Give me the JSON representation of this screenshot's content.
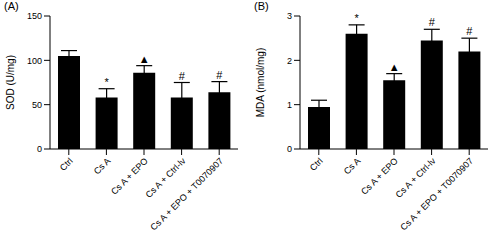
{
  "chart_data": [
    {
      "type": "bar",
      "title": "(A)",
      "y_label": "SOD (U/mg)",
      "categories": [
        "Ctrl",
        "Cs A",
        "Cs A + EPO",
        "Cs A + Ctrl-lv",
        "Cs A + EPO + T0070907"
      ],
      "values": [
        105,
        58,
        86,
        58,
        64
      ],
      "errors": [
        6,
        10,
        8,
        17,
        12
      ],
      "annotations": [
        {
          "category": "Cs A",
          "text": "*"
        },
        {
          "category": "Cs A + EPO",
          "text": "▲"
        },
        {
          "category": "Cs A + Ctrl-lv",
          "text": "#"
        },
        {
          "category": "Cs A + EPO + T0070907",
          "text": "#"
        }
      ],
      "color": "#000000",
      "ylim": [
        0,
        150
      ],
      "yticks": [
        0,
        50,
        100,
        150
      ]
    },
    {
      "type": "bar",
      "title": "(B)",
      "y_label": "MDA (nmol/mg)",
      "categories": [
        "Ctrl",
        "Cs A",
        "Cs A + EPO",
        "Cs A + Ctrl-lv",
        "Cs A + EPO + T0070907"
      ],
      "values": [
        0.95,
        2.6,
        1.55,
        2.45,
        2.2
      ],
      "errors": [
        0.15,
        0.2,
        0.15,
        0.25,
        0.3
      ],
      "annotations": [
        {
          "category": "Cs A",
          "text": "*"
        },
        {
          "category": "Cs A + EPO",
          "text": "▲"
        },
        {
          "category": "Cs A + Ctrl-lv",
          "text": "#"
        },
        {
          "category": "Cs A + EPO + T0070907",
          "text": "#"
        }
      ],
      "color": "#000000",
      "ylim": [
        0,
        3
      ],
      "yticks": [
        0,
        1,
        2,
        3
      ]
    }
  ]
}
